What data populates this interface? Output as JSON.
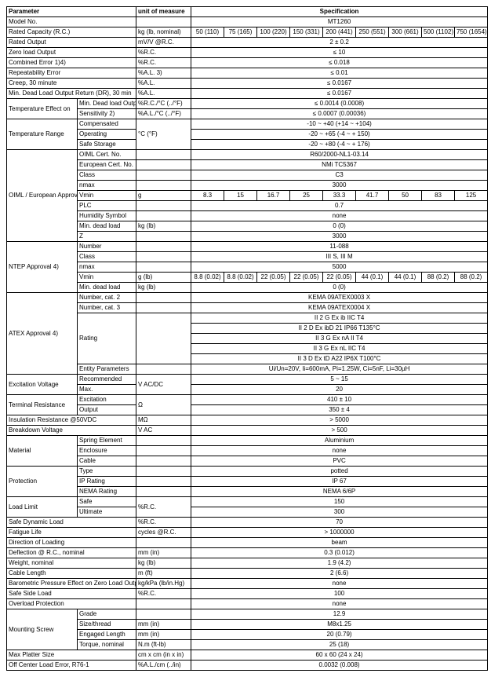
{
  "headers": {
    "parameter": "Parameter",
    "unit": "unit of measure",
    "specification": "Specification"
  },
  "capacities": [
    "50 (110)",
    "75 (165)",
    "100 (220)",
    "150 (331)",
    "200 (441)",
    "250 (551)",
    "300 (661)",
    "500 (1102)",
    "750 (1654)"
  ],
  "rows": {
    "model_no": {
      "p": "Model No.",
      "v": "MT1260"
    },
    "rated_capacity": {
      "p": "Rated Capacity (R.C.)",
      "u": "kg (lb, nominal)"
    },
    "rated_output": {
      "p": "Rated Output",
      "u": "mV/V @R.C.",
      "v": "2 ± 0.2"
    },
    "zero_load": {
      "p": "Zero load Output",
      "u": "%R.C.",
      "v": "≤ 10"
    },
    "combined_error": {
      "p": "Combined Error 1)4)",
      "u": "%R.C.",
      "v": "≤ 0.018"
    },
    "repeatability": {
      "p": "Repeatability Error",
      "u": "%A.L. 3)",
      "v": "≤ 0.01"
    },
    "creep": {
      "p": "Creep, 30 minute",
      "u": "%A.L.",
      "v": "≤ 0.0167"
    },
    "dr": {
      "p": "Min. Dead Load Output Return (DR), 30 min",
      "u": "%A.L.",
      "v": "≤ 0.0167"
    },
    "temp_effect": {
      "p": "Temperature Effect on",
      "r1": {
        "p2": "Min. Dead load Output",
        "u": "%R.C./°C (../°F)",
        "v": "≤ 0.0014 (0.0008)"
      },
      "r2": {
        "p2": "Sensitivity 2)",
        "u": "%A.L./°C (../°F)",
        "v": "≤ 0.0007 (0.00036)"
      }
    },
    "temp_range": {
      "p": "Temperature Range",
      "r1": {
        "p2": "Compensated",
        "v": "-10 ~ +40 (+14 ~ +104)"
      },
      "r2": {
        "p2": "Operating",
        "u": "°C (°F)",
        "v": "-20 ~ +65 (-4 ~ + 150)"
      },
      "r3": {
        "p2": "Safe Storage",
        "v": "-20 ~ +80 (-4 ~ + 176)"
      }
    },
    "oiml": {
      "p": "OIML / European Approval 4)",
      "r1": {
        "p2": "OIML Cert. No.",
        "v": "R60/2000-NL1-03.14"
      },
      "r2": {
        "p2": "European Cert. No.",
        "v": "NMi TC5367"
      },
      "r3": {
        "p2": "Class",
        "v": "C3"
      },
      "r4": {
        "p2": "nmax",
        "v": "3000"
      },
      "r5": {
        "p2": "Vmin",
        "u": "g",
        "vals": [
          "8.3",
          "15",
          "16.7",
          "25",
          "33.3",
          "41.7",
          "50",
          "83",
          "125"
        ]
      },
      "r6": {
        "p2": "PLC",
        "v": "0.7"
      },
      "r7": {
        "p2": "Humidity Symbol",
        "v": "none"
      },
      "r8": {
        "p2": "Min. dead load",
        "u": "kg (lb)",
        "v": "0 (0)"
      },
      "r9": {
        "p2": "Z",
        "v": "3000"
      }
    },
    "ntep": {
      "p": "NTEP Approval 4)",
      "r1": {
        "p2": "Number",
        "v": "11-088"
      },
      "r2": {
        "p2": "Class",
        "v": "III S, III M"
      },
      "r3": {
        "p2": "nmax",
        "v": "5000"
      },
      "r4": {
        "p2": "Vmin",
        "u": "g (lb)",
        "vals": [
          "8.8 (0.02)",
          "8.8 (0.02)",
          "22 (0.05)",
          "22 (0.05)",
          "22 (0.05)",
          "44 (0.1)",
          "44 (0.1)",
          "88 (0.2)",
          "88 (0.2)"
        ]
      },
      "r5": {
        "p2": "Min. dead load",
        "u": "kg (lb)",
        "v": "0 (0)"
      }
    },
    "atex": {
      "p": "ATEX Approval 4)",
      "r1": {
        "p2": "Number, cat. 2",
        "v": "KEMA 09ATEX0003 X"
      },
      "r2": {
        "p2": "Number, cat. 3",
        "v": "KEMA 09ATEX0004 X"
      },
      "r3": {
        "p2": "Rating",
        "v1": "II 2 G Ex ib IIC T4",
        "v2": "II 2 D Ex ibD 21 IP66 T135°C",
        "v3": "II 3 G Ex nA II T4",
        "v4": "II 3 G Ex nL IIC T4",
        "v5": "II 3 D Ex tD A22 IP6X T100°C"
      },
      "r4": {
        "p2": "Entity Parameters",
        "v": "Ui/Un=20V, Ii=600mA, Pi=1.25W, Ci=5nF, Li=30µH"
      }
    },
    "excitation": {
      "p": "Excitation Voltage",
      "r1": {
        "p2": "Recommended",
        "u": "V AC/DC",
        "v": "5 ~ 15"
      },
      "r2": {
        "p2": "Max.",
        "v": "20"
      }
    },
    "term_res": {
      "p": "Terminal Resistance",
      "r1": {
        "p2": "Excitation",
        "u": "Ω",
        "v": "410 ± 10"
      },
      "r2": {
        "p2": "Output",
        "v": "350 ± 4"
      }
    },
    "insulation": {
      "p": "Insulation Resistance @50VDC",
      "u": "MΩ",
      "v": "> 5000"
    },
    "breakdown": {
      "p": "Breakdown Voltage",
      "u": "V AC",
      "v": "> 500"
    },
    "material": {
      "p": "Material",
      "r1": {
        "p2": "Spring Element",
        "v": "Aluminium"
      },
      "r2": {
        "p2": "Enclosure",
        "v": "none"
      },
      "r3": {
        "p2": "Cable",
        "v": "PVC"
      }
    },
    "protection": {
      "p": "Protection",
      "r1": {
        "p2": "Type",
        "v": "potted"
      },
      "r2": {
        "p2": "IP Rating",
        "v": "IP 67"
      },
      "r3": {
        "p2": "NEMA Rating",
        "v": "NEMA 6/6P"
      }
    },
    "load_limit": {
      "p": "Load Limit",
      "r1": {
        "p2": "Safe",
        "u": "%R.C.",
        "v": "150"
      },
      "r2": {
        "p2": "Ultimate",
        "v": "300"
      }
    },
    "safe_dynamic": {
      "p": "Safe Dynamic Load",
      "u": "%R.C.",
      "v": "70"
    },
    "fatigue": {
      "p": "Fatigue Life",
      "u": "cycles @R.C.",
      "v": "> 1000000"
    },
    "direction": {
      "p": "Direction of Loading",
      "v": "beam"
    },
    "deflection": {
      "p": "Deflection @ R.C., nominal",
      "u": "mm (in)",
      "v": "0.3 (0.012)"
    },
    "weight": {
      "p": "Weight, nominal",
      "u": "kg (lb)",
      "v": "1.9 (4.2)"
    },
    "cable_len": {
      "p": "Cable Length",
      "u": "m (ft)",
      "v": "2 (6.6)"
    },
    "baro": {
      "p": "Barometric Pressure Effect on Zero Load Output",
      "u": "kg/kPa (lb/in.Hg)",
      "v": "none"
    },
    "side_load": {
      "p": "Safe Side Load",
      "u": "%R.C.",
      "v": "100"
    },
    "overload": {
      "p": "Overload Protection",
      "v": "none"
    },
    "mounting": {
      "p": "Mounting Screw",
      "r1": {
        "p2": "Grade",
        "v": "12.9"
      },
      "r2": {
        "p2": "Size/thread",
        "u": "mm (in)",
        "v": "M8x1.25"
      },
      "r3": {
        "p2": "Engaged Length",
        "u": "mm (in)",
        "v": "20 (0.79)"
      },
      "r4": {
        "p2": "Torque, nominal",
        "u": "N.m (ft-lb)",
        "v": "25 (18)"
      }
    },
    "platter": {
      "p": "Max Platter Size",
      "u": "cm x cm (in x in)",
      "v": "60 x 60 (24 x 24)"
    },
    "off_center": {
      "p": "Off Center Load Error, R76-1",
      "u": "%A.L./cm (../in)",
      "v": "0.0032 (0.008)"
    }
  }
}
